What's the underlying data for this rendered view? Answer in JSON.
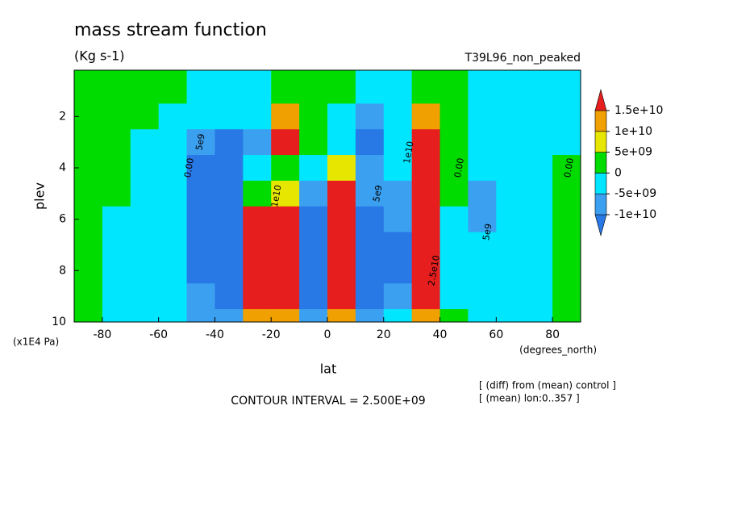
{
  "chart_data": {
    "type": "contour",
    "title": "mass stream function",
    "subtitle": "(Kg s-1)",
    "run_label": "T39L96_non_peaked",
    "x_label": "lat",
    "x_unit": "(degrees_north)",
    "y_label": "plev",
    "y_unit": "(x1E4 Pa)",
    "contour_interval": "CONTOUR INTERVAL = 2.500E+09",
    "notes": [
      "[ (diff) from (mean) control ]",
      "[ (mean) lon:0..357 ]"
    ],
    "xlim": [
      -90,
      90
    ],
    "xticks": [
      -80,
      -60,
      -40,
      -20,
      0,
      20,
      40,
      60,
      80
    ],
    "ylim": [
      0.2,
      10
    ],
    "y_reversed": true,
    "yticks": [
      2,
      4,
      6,
      8,
      10
    ],
    "x": [
      -85,
      -75,
      -65,
      -55,
      -45,
      -35,
      -25,
      -15,
      -5,
      5,
      15,
      25,
      35,
      45,
      55,
      65,
      75,
      85
    ],
    "y": [
      1,
      2,
      3,
      4,
      5,
      6,
      7,
      8,
      9,
      10
    ],
    "z": [
      [
        2000000000.0,
        2000000000.0,
        2000000000.0,
        2000000000.0,
        2000000000.0,
        1000000000.0,
        1000000000.0,
        1000000000.0,
        1000000000.0,
        1000000000.0
      ],
      [
        2000000000.0,
        2000000000.0,
        2000000000.0,
        1000000000.0,
        1000000000.0,
        -1000000000.0,
        -1000000000.0,
        -1000000000.0,
        -1000000000.0,
        -1000000000.0
      ],
      [
        2000000000.0,
        1000000000.0,
        -1000000000.0,
        -2000000000.0,
        -2000000000.0,
        -1000000000.0,
        -2000000000.0,
        -2000000000.0,
        -1000000000.0,
        -1000000000.0
      ],
      [
        1000000000.0,
        -1000000000.0,
        -3000000000.0,
        -4000000000.0,
        -4000000000.0,
        -4000000000.0,
        -4000000000.0,
        -4000000000.0,
        -3000000000.0,
        -2000000000.0
      ],
      [
        -1000000000.0,
        -3000000000.0,
        -8000000000.0,
        -11000000000.0,
        -11000000000.0,
        -12000000000.0,
        -12000000000.0,
        -12000000000.0,
        -10000000000.0,
        -6000000000.0
      ],
      [
        -2000000000.0,
        -4000000000.0,
        -11000000000.0,
        -14000000000.0,
        -16000000000.0,
        -17000000000.0,
        -17000000000.0,
        -16000000000.0,
        -14000000000.0,
        -8000000000.0
      ],
      [
        -2000000000.0,
        -3000000000.0,
        -6000000000.0,
        -3000000000.0,
        4000000000.0,
        18000000000.0,
        22000000000.0,
        22000000000.0,
        18000000000.0,
        10000000000.0
      ],
      [
        2000000000.0,
        12000000000.0,
        17000000000.0,
        4000000000.0,
        8000000000.0,
        20000000000.0,
        22000000000.0,
        20000000000.0,
        17000000000.0,
        10000000000.0
      ],
      [
        2000000000.0,
        3000000000.0,
        1000000000.0,
        -4000000000.0,
        -8000000000.0,
        -12000000000.0,
        -14000000000.0,
        -14000000000.0,
        -12000000000.0,
        -6000000000.0
      ],
      [
        1000000000.0,
        -1000000000.0,
        -3000000000.0,
        6000000000.0,
        18000000000.0,
        22000000000.0,
        24000000000.0,
        24000000000.0,
        20000000000.0,
        10000000000.0
      ],
      [
        -2000000000.0,
        -8000000000.0,
        -11000000000.0,
        -6000000000.0,
        -10000000000.0,
        -12000000000.0,
        -13000000000.0,
        -13000000000.0,
        -11000000000.0,
        -6000000000.0
      ],
      [
        -1000000000.0,
        -2000000000.0,
        -3000000000.0,
        -4000000000.0,
        -6000000000.0,
        -10000000000.0,
        -12000000000.0,
        -12000000000.0,
        -10000000000.0,
        -5000000000.0
      ],
      [
        2000000000.0,
        10000000000.0,
        17000000000.0,
        22000000000.0,
        24000000000.0,
        26000000000.0,
        26000000000.0,
        24000000000.0,
        20000000000.0,
        10000000000.0
      ],
      [
        1000000000.0,
        1000000000.0,
        2000000000.0,
        1000000000.0,
        1000000000.0,
        -1000000000.0,
        -1000000000.0,
        -1000000000.0,
        -1000000000.0,
        1000000000.0
      ],
      [
        -1000000000.0,
        -2000000000.0,
        -2000000000.0,
        -3000000000.0,
        -6000000000.0,
        -6000000000.0,
        -5000000000.0,
        -3000000000.0,
        -3000000000.0,
        -2000000000.0
      ],
      [
        -1000000000.0,
        -1000000000.0,
        -2000000000.0,
        -2000000000.0,
        -2000000000.0,
        -2000000000.0,
        -2000000000.0,
        -2000000000.0,
        -1000000000.0,
        -1000000000.0
      ],
      [
        -1000000000.0,
        -1000000000.0,
        -1000000000.0,
        -1000000000.0,
        -1000000000.0,
        -1000000000.0,
        -1000000000.0,
        -1000000000.0,
        -1000000000.0,
        -1000000000.0
      ],
      [
        -1000000000.0,
        -1000000000.0,
        -1000000000.0,
        1000000000.0,
        1000000000.0,
        2000000000.0,
        2000000000.0,
        2000000000.0,
        2000000000.0,
        2000000000.0
      ]
    ],
    "levels": [
      {
        "value": -10000000000.0,
        "label": "-1e+10"
      },
      {
        "value": -5000000000.0,
        "label": "-5e+09"
      },
      0,
      {
        "value": 5000000000.0,
        "label": "5e+09"
      },
      {
        "value": 10000000000.0,
        "label": "1e+10"
      },
      {
        "value": 15000000000.0,
        "label": "1.5e+10"
      }
    ],
    "colors": [
      "#2878e6",
      "#3ca0f0",
      "#00e6ff",
      "#00dc00",
      "#e6e600",
      "#f0a000",
      "#e61e1e"
    ],
    "contour_labels": [
      {
        "text": "0.00",
        "x": -49,
        "y": 4
      },
      {
        "text": "5e9",
        "x": -45,
        "y": 3
      },
      {
        "text": "1e10",
        "x": -18,
        "y": 5.1
      },
      {
        "text": "5e9",
        "x": 18,
        "y": 5
      },
      {
        "text": "1e10",
        "x": 29,
        "y": 3.4
      },
      {
        "text": "0.00",
        "x": 47,
        "y": 4
      },
      {
        "text": "5e9",
        "x": 57,
        "y": 6.5
      },
      {
        "text": "2.5e10",
        "x": 38,
        "y": 8
      },
      {
        "text": "0.00",
        "x": 86,
        "y": 4
      }
    ]
  }
}
